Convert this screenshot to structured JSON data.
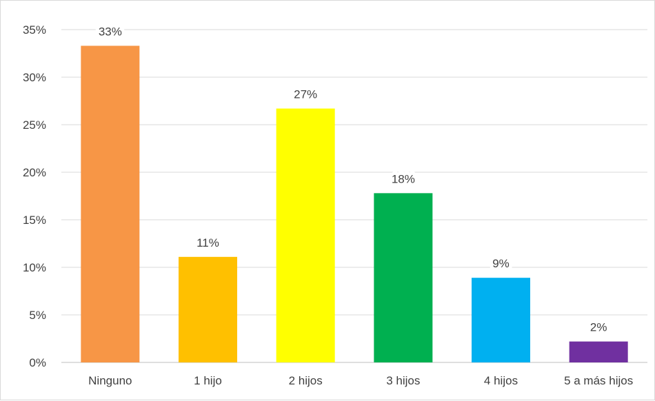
{
  "chart_data": {
    "type": "bar",
    "title": "",
    "xlabel": "",
    "ylabel": "",
    "categories": [
      "Ninguno",
      "1 hijo",
      "2 hijos",
      "3 hijos",
      "4 hijos",
      "5 a más hijos"
    ],
    "values": [
      33.3,
      11.1,
      26.7,
      17.8,
      8.9,
      2.2
    ],
    "data_labels": [
      "33%",
      "11%",
      "27%",
      "18%",
      "9%",
      "2%"
    ],
    "colors": [
      "#F79646",
      "#FFC000",
      "#FFFF00",
      "#00B050",
      "#00B0F0",
      "#7030A0"
    ],
    "ylim": [
      0,
      35
    ],
    "yticks": [
      0,
      5,
      10,
      15,
      20,
      25,
      30,
      35
    ],
    "ytick_labels": [
      "0%",
      "5%",
      "10%",
      "15%",
      "20%",
      "25%",
      "30%",
      "35%"
    ],
    "grid": true,
    "legend": "none"
  }
}
